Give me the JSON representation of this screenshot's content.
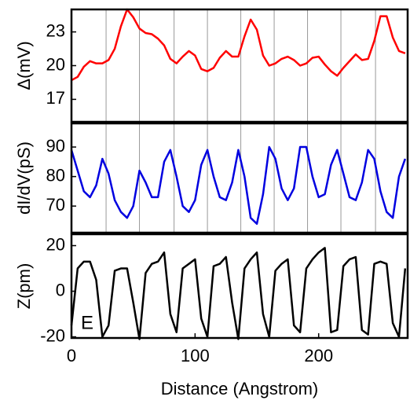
{
  "chart_data": [
    {
      "type": "line",
      "ylabel": "Δ(mV)",
      "color": "#ff0000",
      "x": [
        0,
        5,
        10,
        15,
        20,
        25,
        30,
        35,
        40,
        45,
        50,
        55,
        60,
        65,
        70,
        75,
        80,
        85,
        90,
        95,
        100,
        105,
        110,
        115,
        120,
        125,
        130,
        135,
        140,
        145,
        150,
        155,
        160,
        165,
        170,
        175,
        180,
        185,
        190,
        195,
        200,
        205,
        210,
        215,
        220,
        225,
        230,
        235,
        240,
        245,
        250,
        255,
        260,
        265,
        270
      ],
      "values": [
        18.7,
        19,
        19.9,
        20.4,
        20.2,
        20.2,
        20.5,
        21.5,
        23.5,
        25,
        24.3,
        23.3,
        22.9,
        22.8,
        22.4,
        21.8,
        20.6,
        20.2,
        20.8,
        21.3,
        20.9,
        19.7,
        19.5,
        19.8,
        20.7,
        21.3,
        20.8,
        20.8,
        22.6,
        24.1,
        23.2,
        20.9,
        20,
        20.2,
        20.6,
        20.8,
        20.5,
        20,
        20.2,
        20.7,
        20.8,
        20.1,
        19.5,
        19.1,
        19.8,
        20.4,
        21,
        20.5,
        20.6,
        22.2,
        24.4,
        24.4,
        22.5,
        21.3,
        21.1
      ],
      "xlim": [
        0,
        272
      ],
      "ylim": [
        15,
        25
      ],
      "yticks": [
        17,
        20,
        23
      ],
      "vlines": [
        28,
        55,
        83,
        110,
        137,
        164,
        191,
        218,
        246
      ]
    },
    {
      "type": "line",
      "ylabel": "dI/dV(pS)",
      "color": "#0000e0",
      "x": [
        0,
        5,
        10,
        15,
        20,
        25,
        30,
        35,
        40,
        45,
        50,
        55,
        60,
        65,
        70,
        75,
        80,
        85,
        90,
        95,
        100,
        105,
        110,
        115,
        120,
        125,
        130,
        135,
        140,
        145,
        150,
        155,
        160,
        165,
        170,
        175,
        180,
        185,
        190,
        195,
        200,
        205,
        210,
        215,
        220,
        225,
        230,
        235,
        240,
        245,
        250,
        255,
        260,
        265,
        270
      ],
      "values": [
        89,
        82,
        75,
        73,
        77,
        86,
        81,
        72,
        68,
        66,
        70,
        82,
        78,
        73,
        73,
        85,
        89,
        80,
        70,
        68,
        72,
        84,
        89,
        80,
        73,
        72,
        78,
        89,
        80,
        66,
        64,
        74,
        90,
        86,
        76,
        72,
        76,
        90,
        90,
        80,
        73,
        74,
        84,
        89,
        81,
        73,
        72,
        78,
        89,
        86,
        75,
        68,
        66,
        80,
        86
      ],
      "xlim": [
        0,
        272
      ],
      "ylim": [
        61,
        98
      ],
      "yticks": [
        70,
        80,
        90
      ],
      "vlines": [
        28,
        55,
        83,
        110,
        137,
        164,
        191,
        218,
        246
      ]
    },
    {
      "type": "line",
      "ylabel": "Z(pm)",
      "xlabel": "Distance (Angstrom)",
      "annotation": "E",
      "color": "#000000",
      "x": [
        0,
        5,
        10,
        15,
        20,
        25,
        30,
        35,
        40,
        45,
        50,
        55,
        60,
        65,
        70,
        75,
        80,
        85,
        90,
        95,
        100,
        105,
        110,
        115,
        120,
        125,
        130,
        135,
        140,
        145,
        150,
        155,
        160,
        165,
        170,
        175,
        180,
        185,
        190,
        195,
        200,
        205,
        210,
        215,
        220,
        225,
        230,
        235,
        240,
        245,
        250,
        255,
        260,
        265,
        270
      ],
      "values": [
        -15,
        10,
        13,
        13,
        5,
        -20,
        -15,
        9,
        10,
        10,
        -5,
        -21,
        8,
        12,
        13,
        17,
        -10,
        -18,
        10,
        12,
        14,
        -12,
        -20,
        11,
        12,
        15,
        -5,
        -21,
        10,
        14,
        17,
        -10,
        -20,
        9,
        12,
        14,
        -15,
        -18,
        10,
        14,
        17,
        19,
        -18,
        -17,
        11,
        14,
        15,
        -17,
        -19,
        12,
        13,
        12,
        -14,
        -20,
        10
      ],
      "xlim": [
        0,
        272
      ],
      "ylim": [
        -20.5,
        25
      ],
      "yticks": [
        -20,
        0,
        20
      ],
      "xticks": [
        0,
        100,
        200
      ]
    }
  ]
}
